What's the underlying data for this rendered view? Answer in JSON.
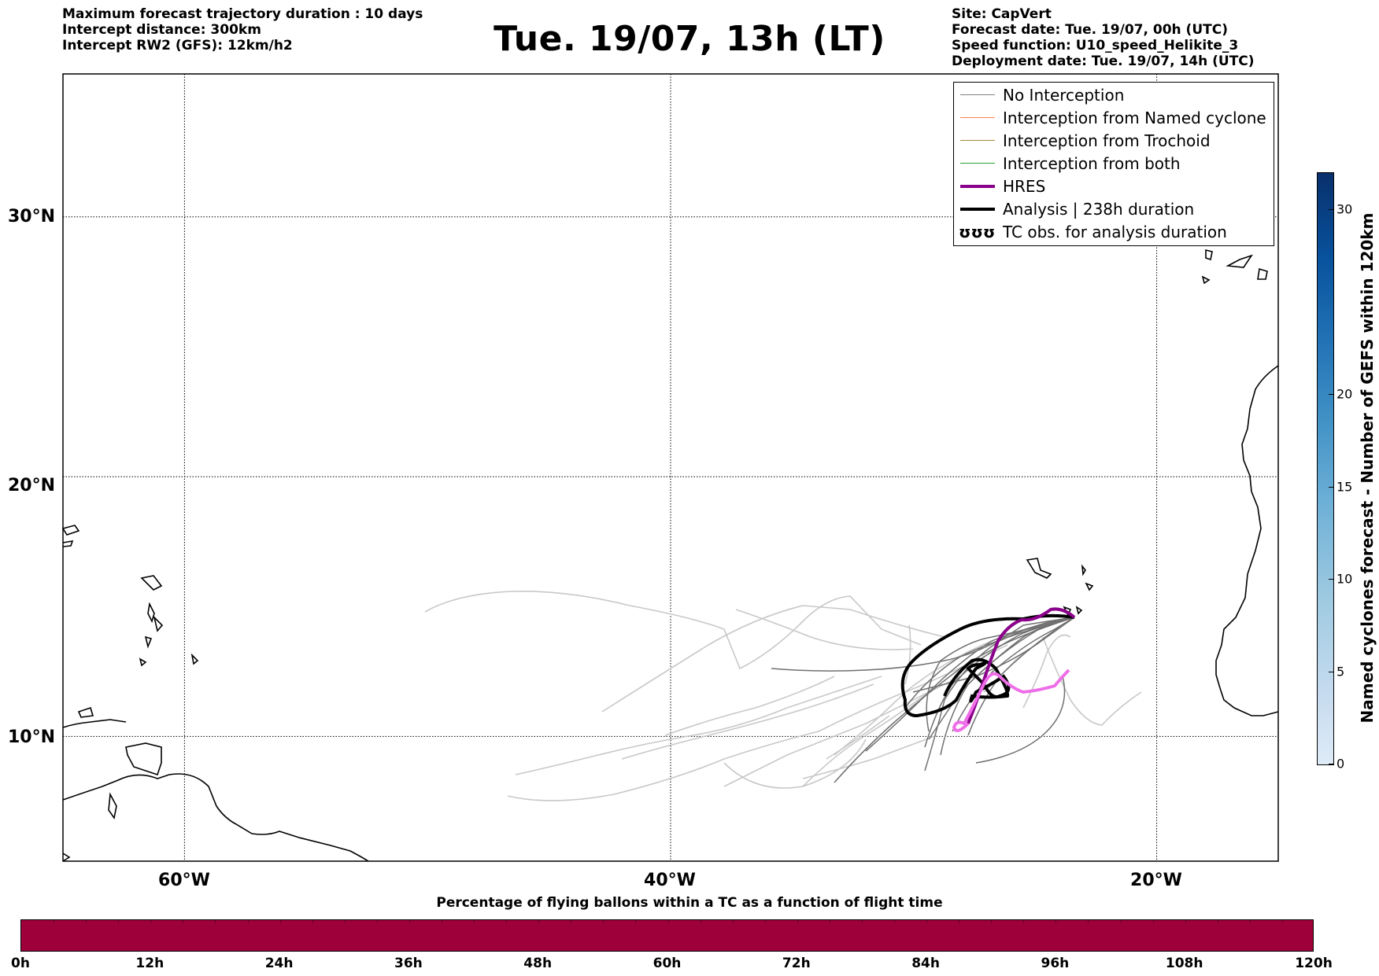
{
  "header": {
    "left": [
      "Maximum forecast trajectory duration : 10 days",
      "Intercept distance: 300km",
      "Intercept RW2 (GFS):  12km/h2"
    ],
    "right": [
      "Site: CapVert",
      "Forecast date: Tue. 19/07, 00h (UTC)",
      "Speed function: U10_speed_Helikite_3",
      "Deployment date: Tue. 19/07, 14h (UTC)"
    ],
    "title": "Tue. 19/07, 13h (LT)"
  },
  "map": {
    "lat_labels": [
      "30°N",
      "20°N",
      "10°N"
    ],
    "lon_labels": [
      "60°W",
      "40°W",
      "20°W"
    ],
    "lat_values": [
      30,
      20,
      10
    ],
    "lon_values": [
      -60,
      -40,
      -20
    ],
    "extent": {
      "lon_min": -65,
      "lon_max": -15,
      "lat_min": 5.2,
      "lat_max": 35.5
    },
    "site": {
      "name": "CapVert",
      "lon": -23.5,
      "lat": 14.8
    }
  },
  "legend": {
    "items": [
      {
        "label": "No Interception",
        "color": "#808080",
        "style": "thin"
      },
      {
        "label": "Interception from Named cyclone",
        "color": "#ff7f50",
        "style": "thin"
      },
      {
        "label": "Interception from Trochoid",
        "color": "#a08b3c",
        "style": "thin"
      },
      {
        "label": "Interception from both",
        "color": "#2ca02c",
        "style": "thin"
      },
      {
        "label": "HRES",
        "color": "#8b008b",
        "style": "thick"
      },
      {
        "label": "Analysis | 238h duration",
        "color": "#000000",
        "style": "thick"
      },
      {
        "label": "TC obs. for analysis duration",
        "color": "#000000",
        "style": "symbol",
        "symbol": "ʊʊʊ"
      }
    ]
  },
  "colorbar_vertical": {
    "label": "Named cyclones forecast - Number of GEFS within 120km",
    "ticks": [
      "0",
      "5",
      "10",
      "15",
      "20",
      "30"
    ],
    "tick_values": [
      0,
      5,
      10,
      15,
      20,
      30
    ],
    "max": 32
  },
  "colorbar_horizontal": {
    "title": "Percentage of flying ballons within a TC as a function of flight time",
    "ticks": [
      "0h",
      "12h",
      "24h",
      "36h",
      "48h",
      "60h",
      "72h",
      "84h",
      "96h",
      "108h",
      "120h"
    ],
    "color": "#9e003a"
  }
}
